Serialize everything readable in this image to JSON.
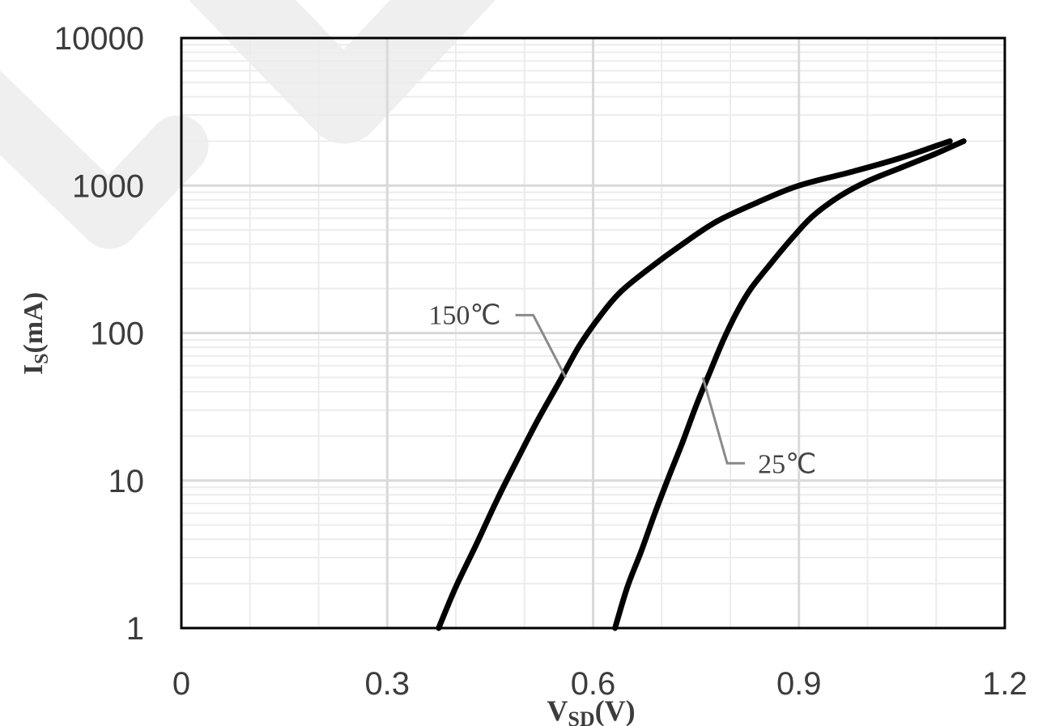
{
  "chart_data": {
    "type": "line",
    "x_scale": "linear",
    "y_scale": "log",
    "xlim": [
      0,
      1.2
    ],
    "ylim": [
      1,
      10000
    ],
    "x_ticks": [
      "0",
      "0.3",
      "0.6",
      "0.9",
      "1.2"
    ],
    "y_ticks": [
      "1",
      "10",
      "100",
      "1000",
      "10000"
    ],
    "xlabel": {
      "main": "V",
      "sub": "SD",
      "suffix": "(V)"
    },
    "ylabel": {
      "main": "I",
      "sub": "S",
      "suffix": "(mA)"
    },
    "grid": true,
    "series": [
      {
        "name": "150℃",
        "x": [
          0.375,
          0.4,
          0.43,
          0.46,
          0.49,
          0.52,
          0.55,
          0.58,
          0.61,
          0.64,
          0.68,
          0.73,
          0.78,
          0.84,
          0.9,
          0.98,
          1.05,
          1.12
        ],
        "y": [
          1,
          1.9,
          3.7,
          7.4,
          14,
          26,
          46,
          82,
          130,
          190,
          270,
          400,
          570,
          770,
          1000,
          1250,
          1550,
          2000
        ]
      },
      {
        "name": "25℃",
        "x": [
          0.632,
          0.65,
          0.67,
          0.69,
          0.71,
          0.73,
          0.75,
          0.77,
          0.79,
          0.81,
          0.83,
          0.86,
          0.89,
          0.92,
          0.96,
          1.0,
          1.05,
          1.1,
          1.14
        ],
        "y": [
          1,
          1.9,
          3.3,
          6,
          10.5,
          18,
          32,
          54,
          90,
          140,
          200,
          300,
          440,
          620,
          850,
          1070,
          1330,
          1650,
          2000
        ]
      }
    ],
    "annotations": [
      {
        "text": "150℃",
        "series": "150℃",
        "at": {
          "x": 0.56,
          "y": 50
        }
      },
      {
        "text": "25℃",
        "series": "25℃",
        "at": {
          "x": 0.76,
          "y": 50
        }
      }
    ],
    "line_color": "#000000",
    "grid_color": "#d9d9d9",
    "annotation_leader_color": "#8a8a8a"
  }
}
